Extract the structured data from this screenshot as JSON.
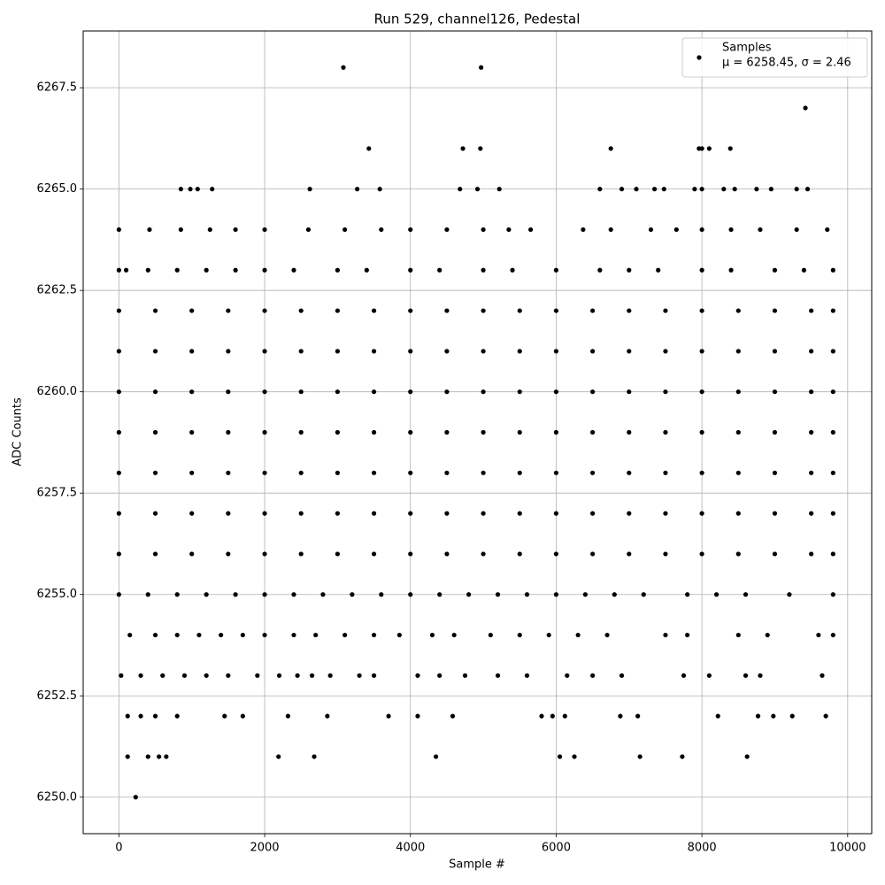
{
  "chart_data": {
    "type": "scatter",
    "title": "Run 529, channel126, Pedestal",
    "xlabel": "Sample #",
    "ylabel": "ADC Counts",
    "xlim": [
      -490,
      10330
    ],
    "ylim": [
      6249.1,
      6268.9
    ],
    "xticks": [
      0,
      2000,
      4000,
      6000,
      8000,
      10000
    ],
    "yticks": [
      {
        "value": 6250,
        "label": "6250.0"
      },
      {
        "value": 6252.5,
        "label": "6252.5"
      },
      {
        "value": 6255,
        "label": "6255.0"
      },
      {
        "value": 6257.5,
        "label": "6257.5"
      },
      {
        "value": 6260,
        "label": "6260.0"
      },
      {
        "value": 6262.5,
        "label": "6262.5"
      },
      {
        "value": 6265,
        "label": "6265.0"
      },
      {
        "value": 6267.5,
        "label": "6267.5"
      }
    ],
    "grid": true,
    "legend": "upper right",
    "legend_subtitle": "μ = 6258.45, σ = 2.46",
    "series": [
      {
        "name": "Samples",
        "color": "#000000",
        "x": [
          0,
          500,
          1000,
          1500,
          2000,
          2500,
          3000,
          3500,
          4000,
          4500,
          5000,
          5500,
          6000,
          6500,
          7000,
          7500,
          8000,
          8500,
          9000,
          9500,
          9800,
          0,
          500,
          1000,
          1500,
          2000,
          2500,
          3000,
          3500,
          4000,
          4500,
          5000,
          5500,
          6000,
          6500,
          7000,
          7500,
          8000,
          8500,
          9000,
          9500,
          9800,
          0,
          500,
          1000,
          1500,
          2000,
          2500,
          3000,
          3500,
          4000,
          4500,
          5000,
          5500,
          6000,
          6500,
          7000,
          7500,
          8000,
          8500,
          9000,
          9500,
          9800,
          0,
          500,
          1000,
          1500,
          2000,
          2500,
          3000,
          3500,
          4000,
          4500,
          5000,
          5500,
          6000,
          6500,
          7000,
          7500,
          8000,
          8500,
          9000,
          9500,
          9800,
          0,
          500,
          1000,
          1500,
          2000,
          2500,
          3000,
          3500,
          4000,
          4500,
          5000,
          5500,
          6000,
          6500,
          7000,
          7500,
          8000,
          8500,
          9000,
          9500,
          9800,
          0,
          500,
          1000,
          1500,
          2000,
          2500,
          3000,
          3500,
          4000,
          4500,
          5000,
          5500,
          6000,
          6500,
          7000,
          7500,
          8000,
          8500,
          9000,
          9500,
          9800,
          0,
          500,
          1000,
          1500,
          2000,
          2500,
          3000,
          3500,
          4000,
          4500,
          5000,
          5500,
          6000,
          6500,
          7000,
          7500,
          8000,
          8500,
          9000,
          9500,
          9800,
          0,
          100,
          400,
          800,
          1200,
          1600,
          2000,
          2400,
          3000,
          3400,
          4000,
          4400,
          5000,
          5400,
          6000,
          6600,
          7000,
          7400,
          8000,
          8400,
          9000,
          9400,
          9800,
          0,
          400,
          800,
          1200,
          1600,
          2000,
          2400,
          2800,
          3200,
          3600,
          4000,
          4400,
          4800,
          5200,
          5600,
          6000,
          6400,
          6800,
          7200,
          7800,
          8200,
          8600,
          9200,
          9800,
          0,
          420,
          850,
          1250,
          1600,
          2000,
          2600,
          3100,
          3600,
          4000,
          4500,
          5000,
          5350,
          5650,
          6370,
          6750,
          7300,
          7650,
          8000,
          8400,
          8800,
          9300,
          9720,
          150,
          500,
          800,
          1100,
          1400,
          1700,
          2000,
          2400,
          2700,
          3100,
          3500,
          3850,
          4300,
          4600,
          5100,
          5500,
          5900,
          6300,
          6700,
          7500,
          7800,
          8500,
          8900,
          9600,
          9800,
          30,
          300,
          600,
          900,
          1200,
          1500,
          1900,
          2200,
          2450,
          2650,
          2900,
          3300,
          3500,
          4100,
          4400,
          4750,
          5200,
          5600,
          6150,
          6500,
          6900,
          7750,
          8100,
          8600,
          8800,
          9650,
          120,
          300,
          500,
          800,
          1450,
          1700,
          2320,
          2860,
          3700,
          4100,
          4580,
          5800,
          5950,
          6120,
          6880,
          7120,
          8220,
          8770,
          8980,
          9240,
          9700,
          120,
          400,
          550,
          650,
          2190,
          2680,
          4350,
          6050,
          6250,
          7150,
          7730,
          8620,
          850,
          980,
          1080,
          1280,
          2620,
          3270,
          3580,
          4680,
          4920,
          5220,
          6600,
          6900,
          7100,
          7350,
          7480,
          7900,
          8000,
          8300,
          8450,
          8750,
          8950,
          9300,
          9450,
          3430,
          4720,
          4960,
          6750,
          7960,
          8000,
          8100,
          8390,
          9420,
          3080,
          4970,
          230
        ],
        "values": [
          6256,
          6256,
          6256,
          6256,
          6256,
          6256,
          6256,
          6256,
          6256,
          6256,
          6256,
          6256,
          6256,
          6256,
          6256,
          6256,
          6256,
          6256,
          6256,
          6256,
          6256,
          6257,
          6257,
          6257,
          6257,
          6257,
          6257,
          6257,
          6257,
          6257,
          6257,
          6257,
          6257,
          6257,
          6257,
          6257,
          6257,
          6257,
          6257,
          6257,
          6257,
          6257,
          6258,
          6258,
          6258,
          6258,
          6258,
          6258,
          6258,
          6258,
          6258,
          6258,
          6258,
          6258,
          6258,
          6258,
          6258,
          6258,
          6258,
          6258,
          6258,
          6258,
          6258,
          6259,
          6259,
          6259,
          6259,
          6259,
          6259,
          6259,
          6259,
          6259,
          6259,
          6259,
          6259,
          6259,
          6259,
          6259,
          6259,
          6259,
          6259,
          6259,
          6259,
          6259,
          6260,
          6260,
          6260,
          6260,
          6260,
          6260,
          6260,
          6260,
          6260,
          6260,
          6260,
          6260,
          6260,
          6260,
          6260,
          6260,
          6260,
          6260,
          6260,
          6260,
          6260,
          6261,
          6261,
          6261,
          6261,
          6261,
          6261,
          6261,
          6261,
          6261,
          6261,
          6261,
          6261,
          6261,
          6261,
          6261,
          6261,
          6261,
          6261,
          6261,
          6261,
          6261,
          6262,
          6262,
          6262,
          6262,
          6262,
          6262,
          6262,
          6262,
          6262,
          6262,
          6262,
          6262,
          6262,
          6262,
          6262,
          6262,
          6262,
          6262,
          6262,
          6262,
          6262,
          6263,
          6263,
          6263,
          6263,
          6263,
          6263,
          6263,
          6263,
          6263,
          6263,
          6263,
          6263,
          6263,
          6263,
          6263,
          6263,
          6263,
          6263,
          6263,
          6263,
          6263,
          6263,
          6263,
          6255,
          6255,
          6255,
          6255,
          6255,
          6255,
          6255,
          6255,
          6255,
          6255,
          6255,
          6255,
          6255,
          6255,
          6255,
          6255,
          6255,
          6255,
          6255,
          6255,
          6255,
          6255,
          6255,
          6255,
          6264,
          6264,
          6264,
          6264,
          6264,
          6264,
          6264,
          6264,
          6264,
          6264,
          6264,
          6264,
          6264,
          6264,
          6264,
          6264,
          6264,
          6264,
          6264,
          6264,
          6264,
          6264,
          6264,
          6254,
          6254,
          6254,
          6254,
          6254,
          6254,
          6254,
          6254,
          6254,
          6254,
          6254,
          6254,
          6254,
          6254,
          6254,
          6254,
          6254,
          6254,
          6254,
          6254,
          6254,
          6254,
          6254,
          6254,
          6254,
          6253,
          6253,
          6253,
          6253,
          6253,
          6253,
          6253,
          6253,
          6253,
          6253,
          6253,
          6253,
          6253,
          6253,
          6253,
          6253,
          6253,
          6253,
          6253,
          6253,
          6253,
          6253,
          6253,
          6253,
          6253,
          6253,
          6252,
          6252,
          6252,
          6252,
          6252,
          6252,
          6252,
          6252,
          6252,
          6252,
          6252,
          6252,
          6252,
          6252,
          6252,
          6252,
          6252,
          6252,
          6252,
          6252,
          6252,
          6251,
          6251,
          6251,
          6251,
          6251,
          6251,
          6251,
          6251,
          6251,
          6251,
          6251,
          6251,
          6265,
          6265,
          6265,
          6265,
          6265,
          6265,
          6265,
          6265,
          6265,
          6265,
          6265,
          6265,
          6265,
          6265,
          6265,
          6265,
          6265,
          6265,
          6265,
          6265,
          6265,
          6265,
          6265,
          6266,
          6266,
          6266,
          6266,
          6266,
          6266,
          6266,
          6266,
          6267,
          6268,
          6268,
          6250
        ]
      }
    ]
  }
}
